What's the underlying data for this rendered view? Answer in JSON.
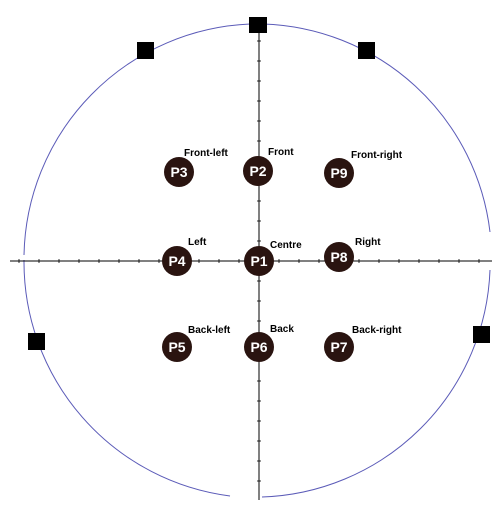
{
  "diagram": {
    "points": [
      {
        "id": "P1",
        "label": "Centre"
      },
      {
        "id": "P2",
        "label": "Front"
      },
      {
        "id": "P3",
        "label": "Front-left"
      },
      {
        "id": "P4",
        "label": "Left"
      },
      {
        "id": "P5",
        "label": "Back-left"
      },
      {
        "id": "P6",
        "label": "Back"
      },
      {
        "id": "P7",
        "label": "Back-right"
      },
      {
        "id": "P8",
        "label": "Right"
      },
      {
        "id": "P9",
        "label": "Front-right"
      }
    ],
    "colors": {
      "point_fill": "#2a1410",
      "point_text": "#ffffff",
      "boundary_circle": "#5b5bb8",
      "axes": "#000000",
      "markers": "#000000"
    }
  }
}
